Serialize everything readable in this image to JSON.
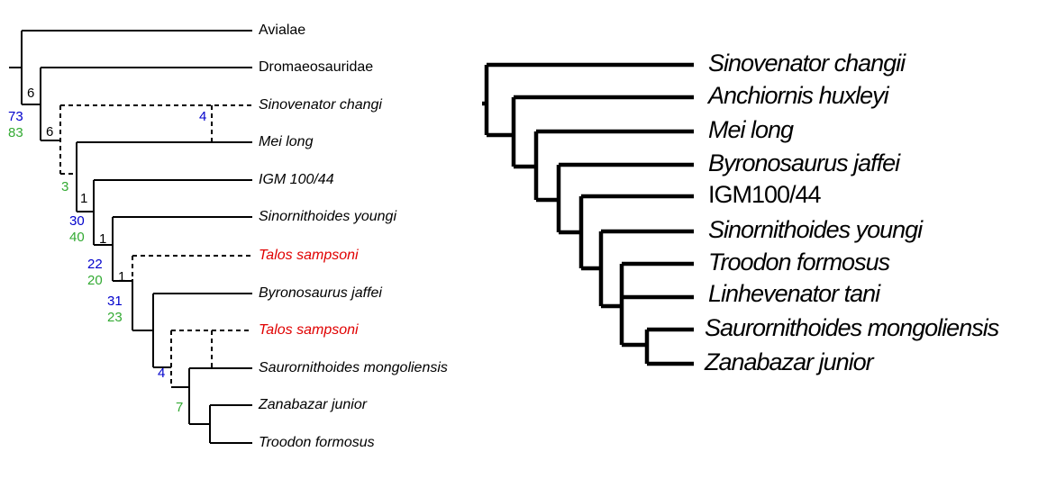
{
  "left_tree": {
    "tips": [
      "Avialae",
      "Dromaeosauridae",
      "Sinovenator changi",
      "Mei long",
      "IGM 100/44",
      "Sinornithoides youngi",
      "Talos sampsoni",
      "Byronosaurus jaffei",
      "Talos sampsoni",
      "Saurornithoides mongoliensis",
      "Zanabazar junior",
      "Troodon formosus"
    ],
    "support": [
      "6",
      "73",
      "83",
      "6",
      "4",
      "3",
      "1",
      "30",
      "40",
      "1",
      "22",
      "20",
      "1",
      "31",
      "23",
      "4",
      "7"
    ]
  },
  "right_tree": {
    "tips": [
      "Sinovenator changii",
      "Anchiornis huxleyi",
      "Mei long",
      "Byronosaurus jaffei",
      "IGM100/44",
      "Sinornithoides youngi",
      "Troodon formosus",
      "Linhevenator tani",
      "Saurornithoides mongoliensis",
      "Zanabazar junior"
    ]
  }
}
